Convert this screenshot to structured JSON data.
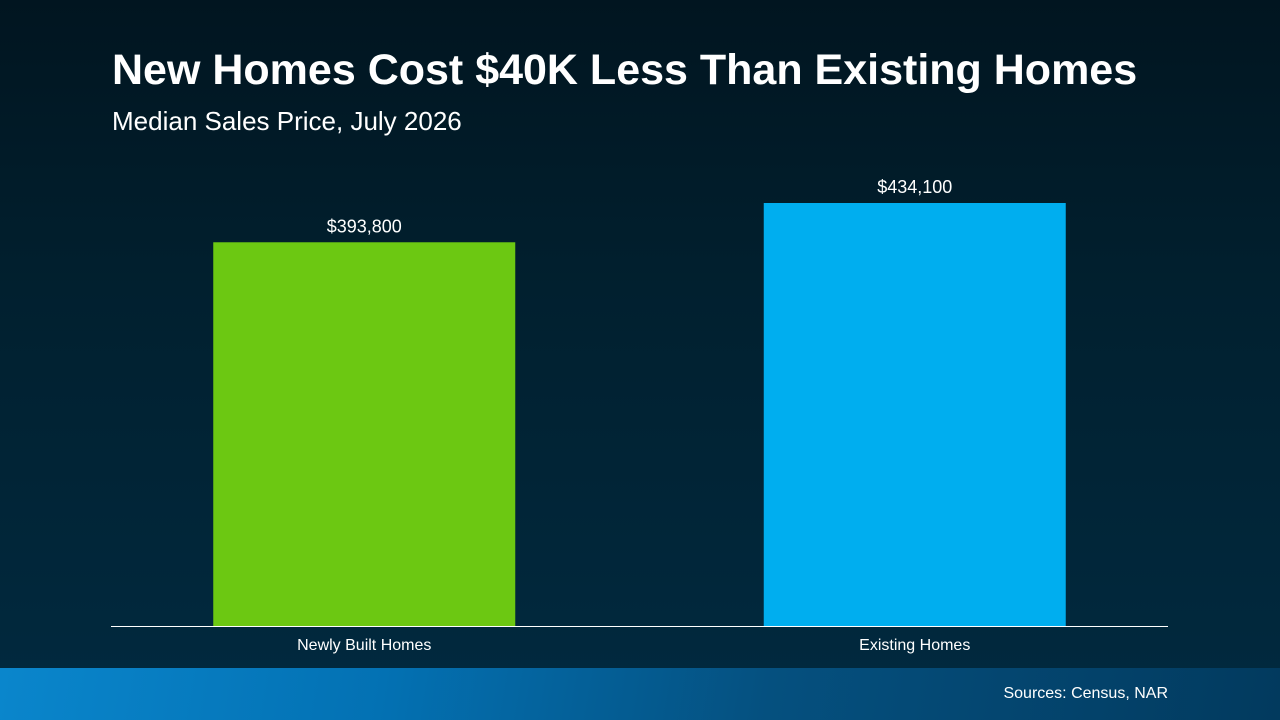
{
  "title": "New Homes Cost $40K Less Than Existing Homes",
  "subtitle": "Median Sales Price, July 2026",
  "source": "Sources: Census, NAR",
  "colors": {
    "background_top": "#011520",
    "background_bottom": "#012a40",
    "footer_band": "#0371b3",
    "axis_line": "#ffffff"
  },
  "chart_data": {
    "type": "bar",
    "categories": [
      "Newly Built Homes",
      "Existing Homes"
    ],
    "values": [
      393800,
      434100
    ],
    "data_labels": [
      "$393,800",
      "$434,100"
    ],
    "bar_colors": [
      "#6cc812",
      "#00aeef"
    ],
    "title": "New Homes Cost $40K Less Than Existing Homes",
    "subtitle": "Median Sales Price, July 2026",
    "xlabel": "",
    "ylabel": "",
    "ylim": [
      0,
      434100
    ],
    "grid": false,
    "legend": "none"
  }
}
